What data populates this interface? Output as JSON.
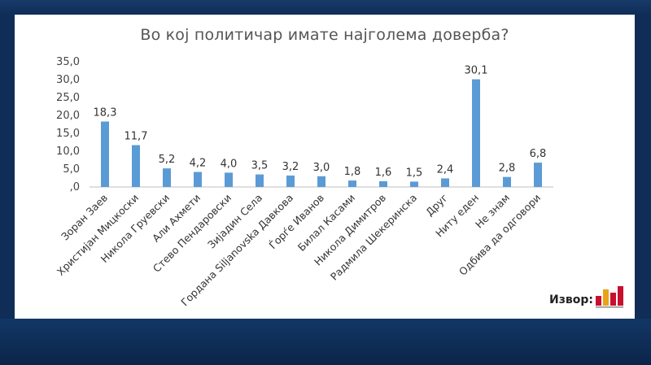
{
  "chart_data": {
    "type": "bar",
    "title": "Во кој политичар имате најголема доверба?",
    "categories": [
      "Зоран Заев",
      "Христијан Мицкоски",
      "Никола Груевски",
      "Али Ахмети",
      "Стево Пендаровски",
      "Зијадин Села",
      "Гордана Siljanovska Давкова",
      "Ѓорѓе Иванов",
      "Билал Касами",
      "Никола Димитров",
      "Радмила Шекеринска",
      "Друг",
      "Ниту еден",
      "Не знам",
      "Одбива да одговори"
    ],
    "values": [
      18.3,
      11.7,
      5.2,
      4.2,
      4.0,
      3.5,
      3.2,
      3.0,
      1.8,
      1.6,
      1.5,
      2.4,
      30.1,
      2.8,
      6.8
    ],
    "value_labels": [
      "18,3",
      "11,7",
      "5,2",
      "4,2",
      "4,0",
      "3,5",
      "3,2",
      "3,0",
      "1,8",
      "1,6",
      "1,5",
      "2,4",
      "30,1",
      "2,8",
      "6,8"
    ],
    "y_ticks": [
      ",0",
      "5,0",
      "10,0",
      "15,0",
      "20,0",
      "25,0",
      "30,0",
      "35,0"
    ],
    "ylim": [
      0,
      35
    ],
    "grid": false,
    "bar_color": "#5b9bd5",
    "xlabel": "",
    "ylabel": ""
  },
  "source": {
    "label": "Извор:"
  }
}
